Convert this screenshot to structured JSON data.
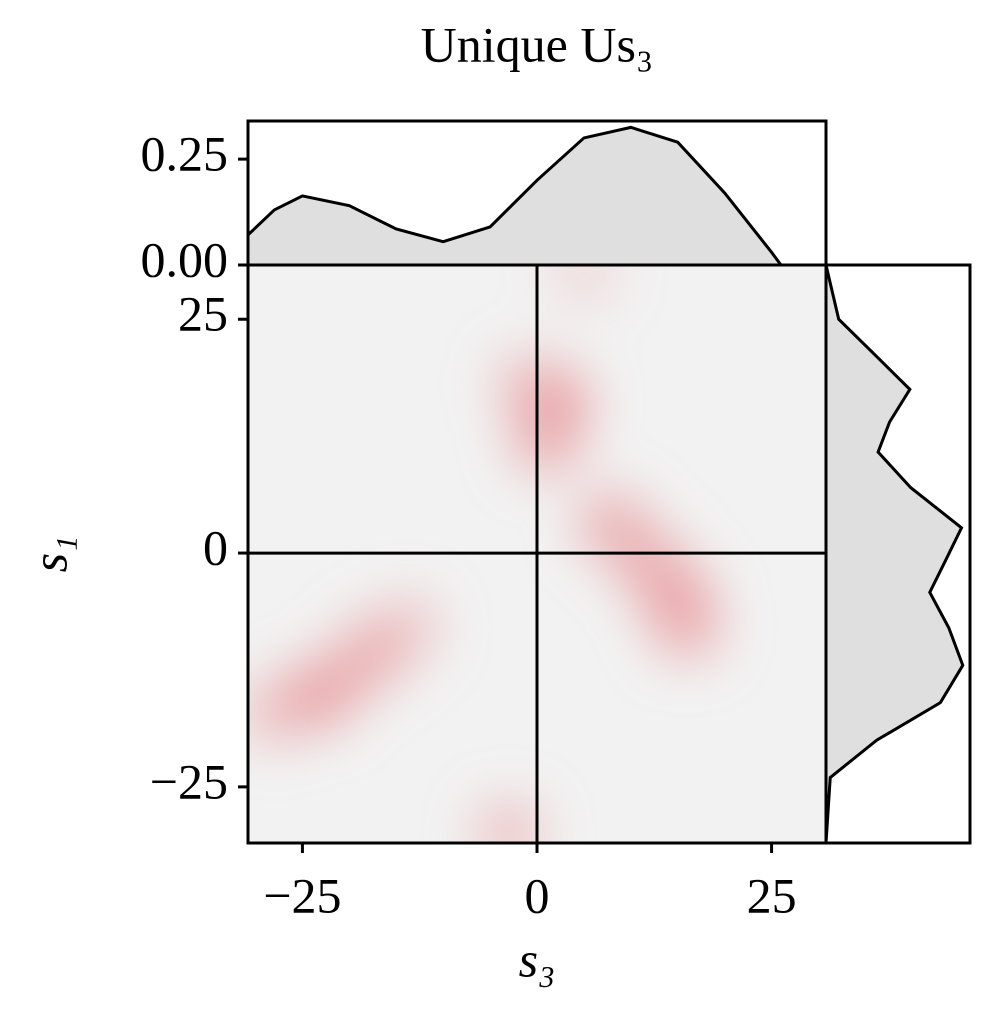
{
  "chart_data": [
    {
      "type": "kde2d",
      "title": "Unique Us₃",
      "xlabel": "s₃",
      "ylabel": "s₁",
      "x": [
        2,
        1,
        -1,
        8,
        12,
        15,
        16,
        -23,
        -18,
        -14,
        -28,
        -3,
        5
      ],
      "y": [
        16,
        12,
        18,
        3,
        -1,
        -5,
        -8,
        -15,
        -11,
        -8,
        -17,
        -30,
        30
      ],
      "weights": [
        1.0,
        0.8,
        0.5,
        0.8,
        0.8,
        1.0,
        0.7,
        1.0,
        0.8,
        0.5,
        0.6,
        0.6,
        0.3
      ],
      "color": "#e9a0a4",
      "background": "#f2f2f2",
      "xlim": [
        -30.8,
        30.8
      ],
      "ylim": [
        -31,
        30.8
      ],
      "xticks": [
        {
          "value": -25,
          "label": "−25"
        },
        0,
        25
      ],
      "yticks": [
        {
          "value": -25,
          "label": "−25"
        },
        0,
        25
      ],
      "hline": 0,
      "vline": 0
    },
    {
      "type": "area",
      "orientation": "vertical",
      "color": "#dfdfdf",
      "x": [
        -30.8,
        -28,
        -25,
        -20,
        -15,
        -10,
        -5,
        0,
        5,
        10,
        15,
        20,
        25,
        26,
        30.8
      ],
      "values": [
        0.071,
        0.13,
        0.163,
        0.14,
        0.085,
        0.055,
        0.09,
        0.2,
        0.3,
        0.325,
        0.29,
        0.17,
        0.03,
        0,
        0
      ],
      "xlim": [
        -30.8,
        30.8
      ],
      "ylim": [
        0,
        0.34
      ],
      "yticks": [
        {
          "value": 0,
          "label": "0.00"
        },
        {
          "value": 0.25,
          "label": "0.25"
        }
      ]
    },
    {
      "type": "area",
      "orientation": "horizontal",
      "color": "#dfdfdf",
      "x": [
        30.8,
        25,
        21,
        17.5,
        14,
        10.8,
        7,
        2.7,
        -1,
        -4.2,
        -8,
        -12,
        -16,
        -20,
        -24,
        -31
      ],
      "values": [
        0,
        0.03,
        0.12,
        0.198,
        0.15,
        0.123,
        0.2,
        0.32,
        0.28,
        0.245,
        0.29,
        0.323,
        0.27,
        0.12,
        0.01,
        0
      ],
      "xlim": [
        0,
        0.34
      ],
      "ylim": [
        -31,
        30.8
      ]
    }
  ]
}
